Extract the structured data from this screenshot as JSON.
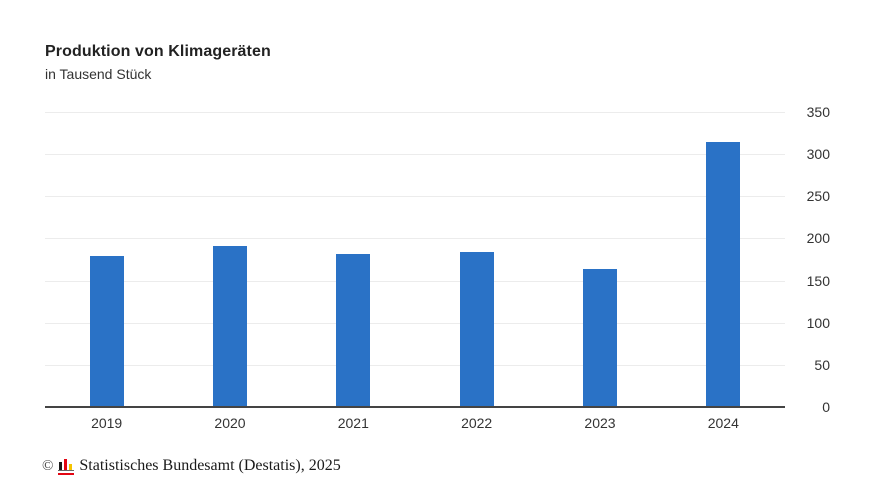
{
  "chart_data": {
    "type": "bar",
    "title": "Produktion von Klimageräten",
    "subtitle": "in Tausend Stück",
    "categories": [
      "2019",
      "2020",
      "2021",
      "2022",
      "2023",
      "2024"
    ],
    "values": [
      179,
      191,
      182,
      184,
      164,
      314
    ],
    "xlabel": "",
    "ylabel": "in Tausend Stück",
    "ylim": [
      0,
      350
    ],
    "yticks": [
      0,
      50,
      100,
      150,
      200,
      250,
      300,
      350
    ],
    "grid": true,
    "y_axis_side": "right",
    "legend": "none",
    "bar_color": "#2a72c6"
  },
  "footer": {
    "copyright": "©",
    "source": "Statistisches Bundesamt (Destatis), 2025",
    "logo": {
      "name": "destatis-logo",
      "colors": {
        "black": "#1a1a1a",
        "red": "#e30613",
        "gold": "#f5c400",
        "base": "#666666",
        "underline": "#e30613"
      }
    }
  },
  "colors": {
    "background": "#ffffff",
    "gridline": "#ececec",
    "axis_line": "#444444",
    "text": "#333333",
    "title": "#222222"
  }
}
